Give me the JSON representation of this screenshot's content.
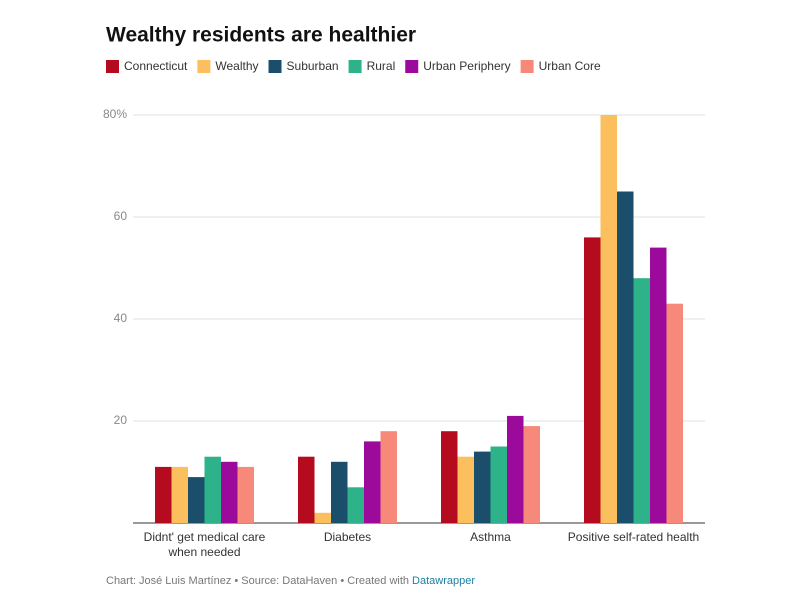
{
  "chart_data": {
    "type": "bar",
    "title": "Wealthy residents are healthier",
    "categories": [
      "Didnt' get medical care when needed",
      "Diabetes",
      "Asthma",
      "Positive self-rated health"
    ],
    "series": [
      {
        "name": "Connecticut",
        "color": "#b50b1e",
        "values": [
          11,
          13,
          18,
          56
        ]
      },
      {
        "name": "Wealthy",
        "color": "#fbbf5e",
        "values": [
          11,
          2,
          13,
          80
        ]
      },
      {
        "name": "Suburban",
        "color": "#1b4e6b",
        "values": [
          9,
          12,
          14,
          65
        ]
      },
      {
        "name": "Rural",
        "color": "#2db28a",
        "values": [
          13,
          7,
          15,
          48
        ]
      },
      {
        "name": "Urban Periphery",
        "color": "#9c0a9c",
        "values": [
          12,
          16,
          21,
          54
        ]
      },
      {
        "name": "Urban Core",
        "color": "#f7897a",
        "values": [
          11,
          18,
          19,
          43
        ]
      }
    ],
    "ylim": [
      0,
      80
    ],
    "yticks": [
      20,
      40,
      60,
      {
        "value": 80,
        "label": "80%"
      }
    ],
    "grid": true,
    "footer": {
      "text": "Chart: José Luis Martínez • Source: DataHaven • Created with",
      "link": "Datawrapper"
    }
  }
}
